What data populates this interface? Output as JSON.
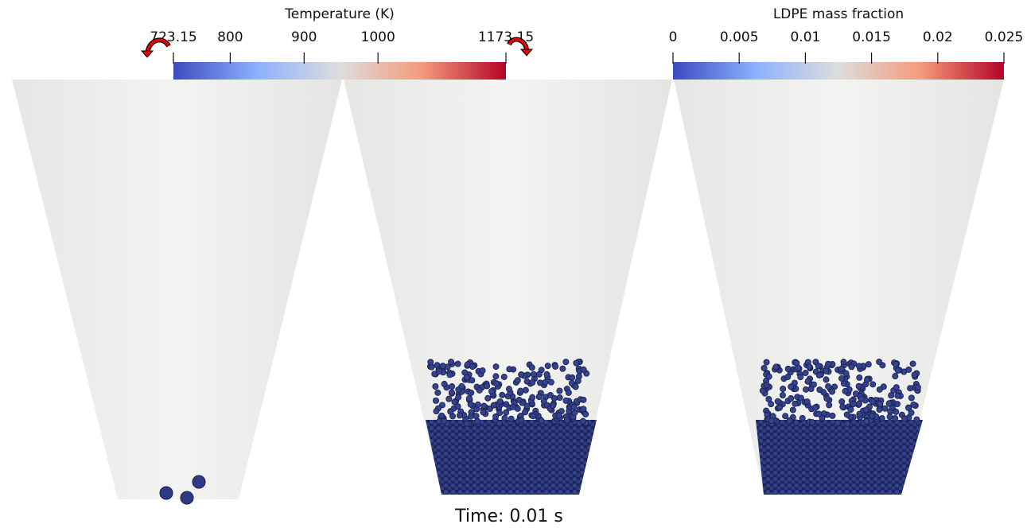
{
  "colorbars": [
    {
      "title": "Temperature (K)",
      "range": [
        723.15,
        1173.15
      ],
      "ticks": [
        723.15,
        800,
        900,
        1000,
        1173.15
      ]
    },
    {
      "title": "LDPE mass fraction",
      "range": [
        0,
        0.025
      ],
      "ticks": [
        0,
        0.005,
        0.01,
        0.015,
        0.02,
        0.025
      ]
    }
  ],
  "time_label": "Time: 0.01 s"
}
